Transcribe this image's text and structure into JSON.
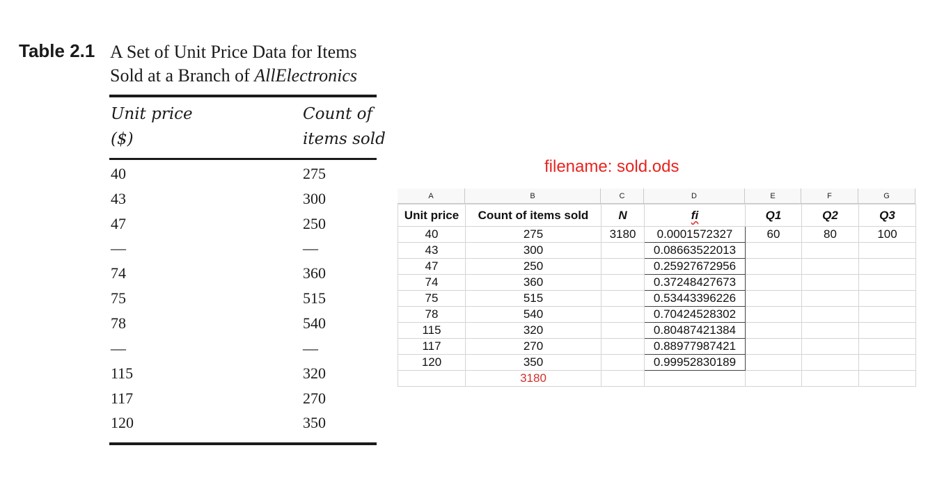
{
  "book_table": {
    "label": "Table 2.1",
    "title_line1": "A Set of Unit Price Data for Items",
    "title_line2_prefix": "Sold at a Branch of ",
    "title_line2_italic": "AllElectronics",
    "col1_header_line1": "Unit price",
    "col1_header_line2": "($)",
    "col2_header_line1": "Count of",
    "col2_header_line2": "items sold",
    "rows": [
      [
        "40",
        "275"
      ],
      [
        "43",
        "300"
      ],
      [
        "47",
        "250"
      ],
      [
        "—",
        "—"
      ],
      [
        "74",
        "360"
      ],
      [
        "75",
        "515"
      ],
      [
        "78",
        "540"
      ],
      [
        "—",
        "—"
      ],
      [
        "115",
        "320"
      ],
      [
        "117",
        "270"
      ],
      [
        "120",
        "350"
      ]
    ]
  },
  "spreadsheet": {
    "filename_label": "filename: sold.ods",
    "column_letters": [
      "A",
      "B",
      "C",
      "D",
      "E",
      "F",
      "G"
    ],
    "headers": [
      "Unit price",
      "Count of items sold",
      "N",
      "fi",
      "Q1",
      "Q2",
      "Q3"
    ],
    "first_row_extra": {
      "N": "3180",
      "Q1": "60",
      "Q2": "80",
      "Q3": "100"
    },
    "rows": [
      {
        "price": "40",
        "count": "275",
        "fi": "0.0001572327"
      },
      {
        "price": "43",
        "count": "300",
        "fi": "0.08663522013"
      },
      {
        "price": "47",
        "count": "250",
        "fi": "0.25927672956"
      },
      {
        "price": "74",
        "count": "360",
        "fi": "0.37248427673"
      },
      {
        "price": "75",
        "count": "515",
        "fi": "0.53443396226"
      },
      {
        "price": "78",
        "count": "540",
        "fi": "0.70424528302"
      },
      {
        "price": "115",
        "count": "320",
        "fi": "0.80487421384"
      },
      {
        "price": "117",
        "count": "270",
        "fi": "0.88977987421"
      },
      {
        "price": "120",
        "count": "350",
        "fi": "0.99952830189"
      }
    ],
    "total_count": "3180",
    "accent_red": "#d0302a"
  }
}
